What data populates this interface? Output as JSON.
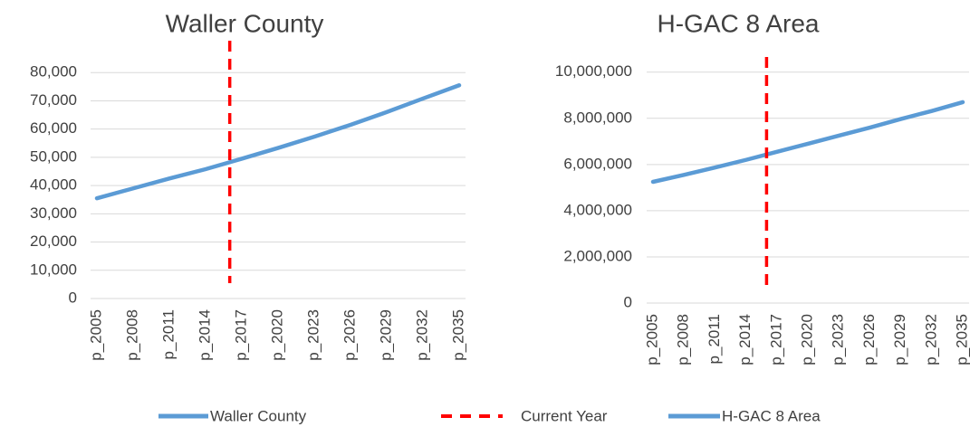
{
  "chart_data": [
    {
      "type": "line",
      "title": "Waller County",
      "x": [
        2005,
        2008,
        2011,
        2014,
        2017,
        2020,
        2023,
        2026,
        2029,
        2032,
        2035
      ],
      "series": [
        {
          "name": "Waller County",
          "color": "#5b9bd5",
          "values": [
            35500,
            39000,
            42500,
            45800,
            49500,
            53300,
            57300,
            61500,
            66000,
            70800,
            75500
          ]
        }
      ],
      "marker": {
        "name": "Current Year",
        "color": "#ff0000",
        "x": 2016
      },
      "xlim": [
        2005,
        2035
      ],
      "xticks": [
        {
          "value": 2005,
          "label": "p_2005"
        },
        {
          "value": 2008,
          "label": "p_2008"
        },
        {
          "value": 2011,
          "label": "p_2011"
        },
        {
          "value": 2014,
          "label": "p_2014"
        },
        {
          "value": 2017,
          "label": "p_2017"
        },
        {
          "value": 2020,
          "label": "p_2020"
        },
        {
          "value": 2023,
          "label": "p_2023"
        },
        {
          "value": 2026,
          "label": "p_2026"
        },
        {
          "value": 2029,
          "label": "p_2029"
        },
        {
          "value": 2032,
          "label": "p_2032"
        },
        {
          "value": 2035,
          "label": "p_2035"
        }
      ],
      "ylim": [
        0,
        90000
      ],
      "yticks": [
        0,
        {
          "value": 10000,
          "label": "10,000"
        },
        {
          "value": 20000,
          "label": "20,000"
        },
        {
          "value": 30000,
          "label": "30,000"
        },
        {
          "value": 40000,
          "label": "40,000"
        },
        {
          "value": 50000,
          "label": "50,000"
        },
        {
          "value": 60000,
          "label": "60,000"
        },
        {
          "value": 70000,
          "label": "70,000"
        },
        {
          "value": 80000,
          "label": "80,000"
        }
      ],
      "grid": true
    },
    {
      "type": "line",
      "title": "H-GAC 8 Area",
      "x": [
        2005,
        2008,
        2011,
        2014,
        2017,
        2020,
        2023,
        2026,
        2029,
        2032,
        2035
      ],
      "series": [
        {
          "name": "H-GAC 8 Area",
          "color": "#5b9bd5",
          "values": [
            5250000,
            5550000,
            5870000,
            6200000,
            6550000,
            6900000,
            7250000,
            7600000,
            7970000,
            8320000,
            8700000
          ]
        }
      ],
      "marker": {
        "color": "#ff0000",
        "x": 2016
      },
      "xlim": [
        2005,
        2035
      ],
      "xticks": [
        {
          "value": 2005,
          "label": "p_2005"
        },
        {
          "value": 2008,
          "label": "p_2008"
        },
        {
          "value": 2011,
          "label": "p_2011"
        },
        {
          "value": 2014,
          "label": "p_2014"
        },
        {
          "value": 2017,
          "label": "p_2017"
        },
        {
          "value": 2020,
          "label": "p_2020"
        },
        {
          "value": 2023,
          "label": "p_2023"
        },
        {
          "value": 2026,
          "label": "p_2026"
        },
        {
          "value": 2029,
          "label": "p_2029"
        },
        {
          "value": 2032,
          "label": "p_2032"
        },
        {
          "value": 2035,
          "label": "p_2035"
        }
      ],
      "ylim": [
        0,
        10500000
      ],
      "yticks": [
        0,
        {
          "value": 2000000,
          "label": "2,000,000"
        },
        {
          "value": 4000000,
          "label": "4,000,000"
        },
        {
          "value": 6000000,
          "label": "6,000,000"
        },
        {
          "value": 8000000,
          "label": "8,000,000"
        },
        {
          "value": 10000000,
          "label": "10,000,000"
        }
      ],
      "grid": true
    }
  ]
}
